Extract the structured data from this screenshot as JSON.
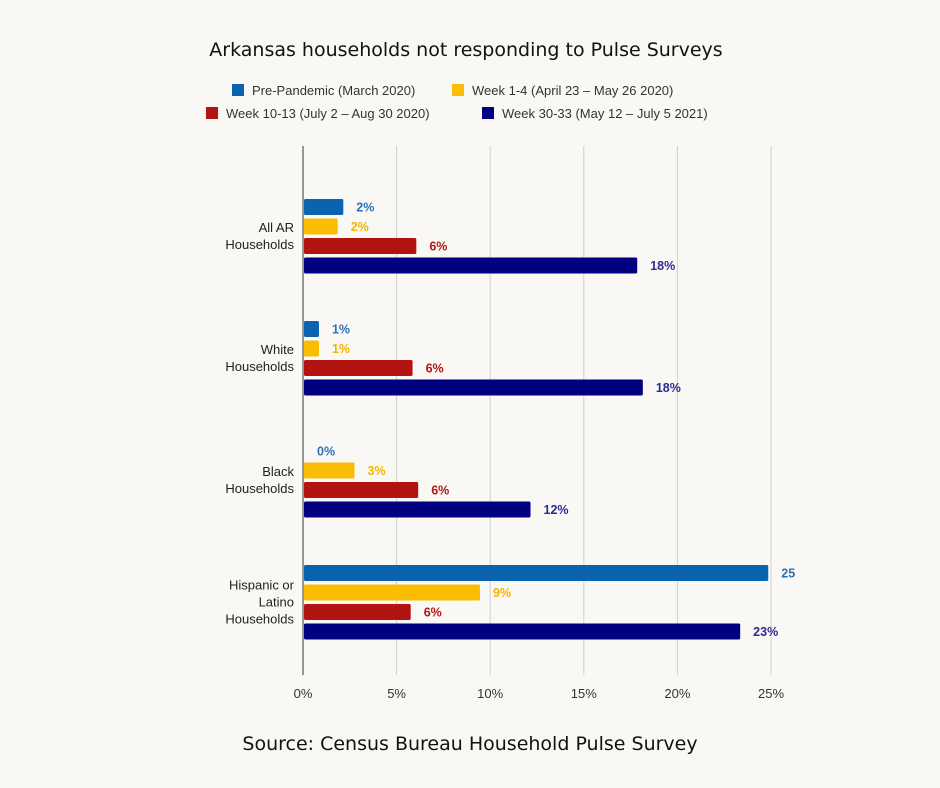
{
  "chart_data": {
    "type": "bar",
    "orientation": "horizontal",
    "title": "Arkansas households not responding to Pulse Surveys",
    "categories": [
      [
        "All AR",
        "Households"
      ],
      [
        "White",
        "Households"
      ],
      [
        "Black",
        "Households"
      ],
      [
        "Hispanic or",
        "Latino",
        "Households"
      ]
    ],
    "series": [
      {
        "name": "Pre-Pandemic (March 2020)",
        "color": "#0b63b0",
        "values": [
          2.1,
          0.8,
          0,
          24.8
        ],
        "labels": [
          "2%",
          "1%",
          "0%",
          "25"
        ]
      },
      {
        "name": "Week 1-4 (April 23 – May 26 2020)",
        "color": "#fbbc04",
        "values": [
          1.8,
          0.8,
          2.7,
          9.4
        ],
        "labels": [
          "2%",
          "1%",
          "3%",
          "9%"
        ]
      },
      {
        "name": "Week 10-13 (July 2 – Aug 30 2020)",
        "color": "#b31412",
        "values": [
          6.0,
          5.8,
          6.1,
          5.7
        ],
        "labels": [
          "6%",
          "6%",
          "6%",
          "6%"
        ]
      },
      {
        "name": "Week 30-33 (May 12 – July 5 2021)",
        "color": "#000080",
        "values": [
          17.8,
          18.1,
          12.1,
          23.3
        ],
        "labels": [
          "18%",
          "18%",
          "12%",
          "23%"
        ]
      }
    ],
    "xlim": [
      0,
      25
    ],
    "xticks": [
      0,
      5,
      10,
      15,
      20,
      25
    ],
    "xtick_labels": [
      "0%",
      "5%",
      "10%",
      "15%",
      "20%",
      "25%"
    ],
    "grid": "vertical",
    "legend": "top"
  },
  "source": "Source: Census Bureau Household Pulse Survey"
}
